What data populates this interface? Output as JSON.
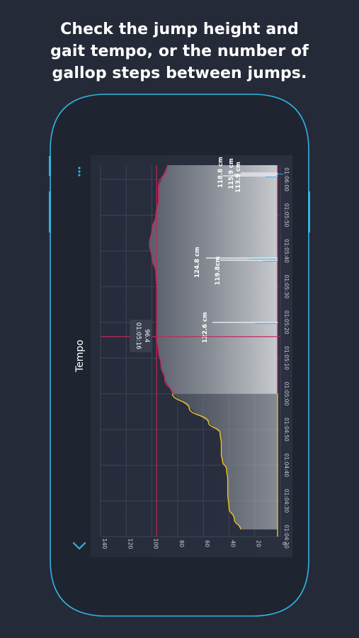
{
  "headline": [
    "Check the jump height and",
    "gait tempo, or the number of",
    "gallop steps between jumps."
  ],
  "colors": {
    "background": "#252a38",
    "phone_outline": "#2fb4e2",
    "screen": "#222836",
    "grid": "#3c4456",
    "tempo_line": "#c7245a",
    "gallop_line": "#f0c419",
    "accent_blue": "#2fb4e2",
    "label": "#ffffff"
  },
  "panel": {
    "title": "Tempo",
    "menu_icon": "more-vertical-icon",
    "collapse_icon": "chevron-down-icon"
  },
  "chart_data": {
    "type": "line",
    "title": "",
    "xlabel": "",
    "ylabel": "",
    "ylim": [
      0,
      140
    ],
    "xlim": [
      "01:04:20",
      "01:06:04"
    ],
    "y_ticks": [
      "0",
      "20",
      "40",
      "60",
      "80",
      "100",
      "120",
      "140"
    ],
    "x_ticks": [
      "01:04:20",
      "01:04:30",
      "01:04:40",
      "01:04:50",
      "01:05:00",
      "01:05:10",
      "01:05:20",
      "01:05:30",
      "01:05:40",
      "01:05:50",
      "01:06:00"
    ],
    "grid": true,
    "x_unit_seconds": [
      [
        3905,
        "01:05:05"
      ]
    ],
    "series": [
      {
        "color": "#f0c419",
        "x": [
          "01:04:22",
          "01:04:25",
          "01:04:28",
          "01:04:32",
          "01:04:36",
          "01:04:39",
          "01:04:41",
          "01:04:43",
          "01:04:46",
          "01:04:49",
          "01:04:52",
          "01:04:56",
          "01:05:00"
        ],
        "values": [
          31,
          36,
          40,
          41,
          41,
          42,
          45,
          46,
          46,
          47,
          56,
          71,
          84
        ]
      },
      {
        "color": "#c7245a",
        "x": [
          "01:05:00",
          "01:05:04",
          "01:05:08",
          "01:05:12",
          "01:05:16",
          "01:05:22",
          "01:05:28",
          "01:05:34",
          "01:05:38",
          "01:05:42",
          "01:05:46",
          "01:05:50",
          "01:05:54",
          "01:05:58",
          "01:06:04"
        ],
        "values": [
          84,
          90,
          93,
          95,
          96.4,
          96,
          96,
          97,
          100,
          102,
          100,
          97,
          95,
          95,
          88
        ]
      }
    ],
    "jumps": [
      {
        "time": "01:05:20",
        "label": "122.6 cm",
        "value": 122.6
      },
      {
        "time": "01:05:38",
        "label": "124.8 cm",
        "value": 124.8
      },
      {
        "time": "01:05:38",
        "label": "119.8cm",
        "value": 119.8
      },
      {
        "time": "01:06:01",
        "label": "118.8 cm",
        "value": 118.8
      },
      {
        "time": "01:06:02",
        "label": "115.9 cm",
        "value": 115.9
      },
      {
        "time": "01:06:03",
        "label": "113.9 cm",
        "value": 113.9
      }
    ],
    "crosshair": {
      "time": "01:05:16",
      "value": "96.4"
    }
  }
}
